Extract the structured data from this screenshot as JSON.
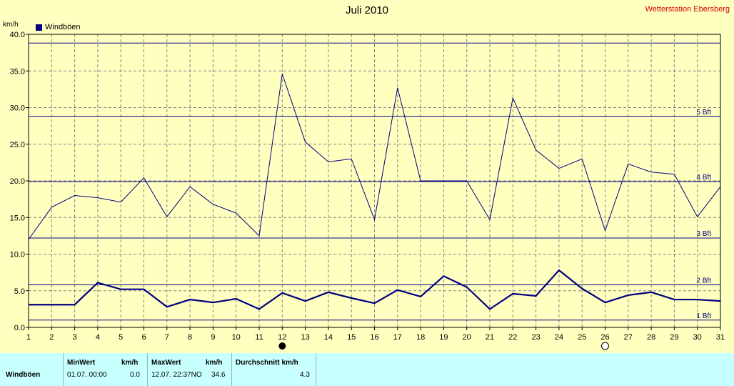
{
  "station": "Wetterstation Ebersberg",
  "chart_data": {
    "type": "line",
    "title": "Juli 2010",
    "ylabel": "km/h",
    "xlabel": "",
    "ylim": [
      0,
      40
    ],
    "yticks": [
      "0.0",
      "5.0",
      "10.0",
      "15.0",
      "20.0",
      "25.0",
      "30.0",
      "35.0",
      "40.0"
    ],
    "x": [
      1,
      2,
      3,
      4,
      5,
      6,
      7,
      8,
      9,
      10,
      11,
      12,
      13,
      14,
      15,
      16,
      17,
      18,
      19,
      20,
      21,
      22,
      23,
      24,
      25,
      26,
      27,
      28,
      29,
      30,
      31
    ],
    "grid": true,
    "legend_position": "top-left",
    "series": [
      {
        "name": "Windböen",
        "values": [
          12.0,
          16.4,
          18.0,
          17.7,
          17.1,
          20.4,
          15.1,
          19.2,
          16.8,
          15.6,
          12.5,
          34.6,
          25.3,
          22.6,
          23.0,
          14.7,
          32.7,
          20.0,
          20.0,
          20.0,
          14.7,
          31.3,
          24.2,
          21.7,
          23.0,
          13.2,
          22.3,
          21.2,
          20.9,
          15.1,
          19.2
        ]
      },
      {
        "name": "",
        "values": [
          3.1,
          3.1,
          3.1,
          6.1,
          5.2,
          5.2,
          2.8,
          3.8,
          3.4,
          3.9,
          2.5,
          4.7,
          3.6,
          4.8,
          4.0,
          3.3,
          5.1,
          4.2,
          7.0,
          5.5,
          2.5,
          4.6,
          4.3,
          7.8,
          5.3,
          3.4,
          4.4,
          4.8,
          3.8,
          3.8,
          3.6
        ]
      }
    ],
    "thresholds": [
      {
        "label": "1 Bft",
        "value": 1.0
      },
      {
        "label": "2 Bft",
        "value": 5.8
      },
      {
        "label": "3 Bft",
        "value": 12.2
      },
      {
        "label": "4 Bft",
        "value": 19.9
      },
      {
        "label": "5 Bft",
        "value": 28.8
      },
      {
        "label": "",
        "value": 38.8
      }
    ],
    "markers": [
      {
        "day": 12,
        "type": "new-moon"
      },
      {
        "day": 26,
        "type": "full-moon"
      }
    ]
  },
  "table": {
    "headers": {
      "min": "MinWert",
      "min_unit": "km/h",
      "max": "MaxWert",
      "max_unit": "km/h",
      "avg": "Durchschnitt km/h"
    },
    "row": {
      "label": "Windböen",
      "min_time": "01.07.  00:00",
      "min_value": "0.0",
      "max_time": "12.07.  22:37NO",
      "max_value": "34.6",
      "avg_value": "4.3"
    }
  },
  "colors": {
    "background": "#ffffc0",
    "series": "#000080",
    "grid": "#808080",
    "station": "#d00000",
    "table_bg": "#c8ffff"
  }
}
